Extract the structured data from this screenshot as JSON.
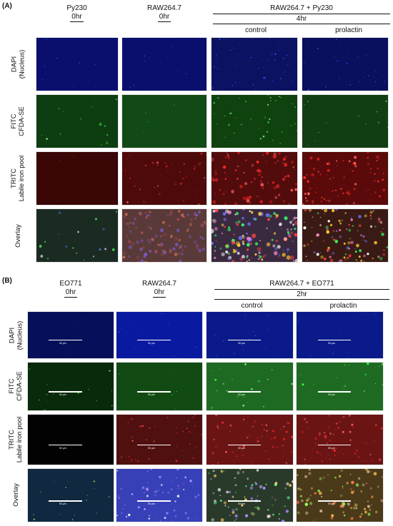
{
  "panel_a": {
    "label": "(A)",
    "columns": [
      {
        "name": "Py230",
        "time": "0hr"
      },
      {
        "name": "RAW264.7",
        "time": "0hr"
      }
    ],
    "group": {
      "name": "RAW264.7 + Py230",
      "time": "4hr",
      "sub": [
        "control",
        "prolactin"
      ]
    },
    "rows": [
      {
        "line1": "DAPI",
        "line2": "(Nucleus)"
      },
      {
        "line1": "FITC",
        "line2": "CFDA-SE"
      },
      {
        "line1": "TRITC",
        "line2": "Labile iron pool"
      },
      {
        "line1": "Overlay",
        "line2": ""
      }
    ]
  },
  "panel_b": {
    "label": "(B)",
    "columns": [
      {
        "name": "EO771",
        "time": "0hr"
      },
      {
        "name": "RAW264.7",
        "time": "0hr"
      }
    ],
    "group": {
      "name": "RAW264.7 + EO771",
      "time": "2hr",
      "sub": [
        "control",
        "prolactin"
      ]
    },
    "rows": [
      {
        "line1": "DAPI",
        "line2": "(Nucleus)"
      },
      {
        "line1": "FITC",
        "line2": "CFDA-SE"
      },
      {
        "line1": "TRITC",
        "line2": "Labile iron pool"
      },
      {
        "line1": "Overlay",
        "line2": ""
      }
    ],
    "scale_label": "50 µm"
  },
  "colors": {
    "dapi_bg": "#0a0f6e",
    "fitc_bg": "#0f3d12",
    "tritc_bg": "#4a0808",
    "overlay_bg": "#1c2a2a",
    "black_bg": "#020202"
  }
}
